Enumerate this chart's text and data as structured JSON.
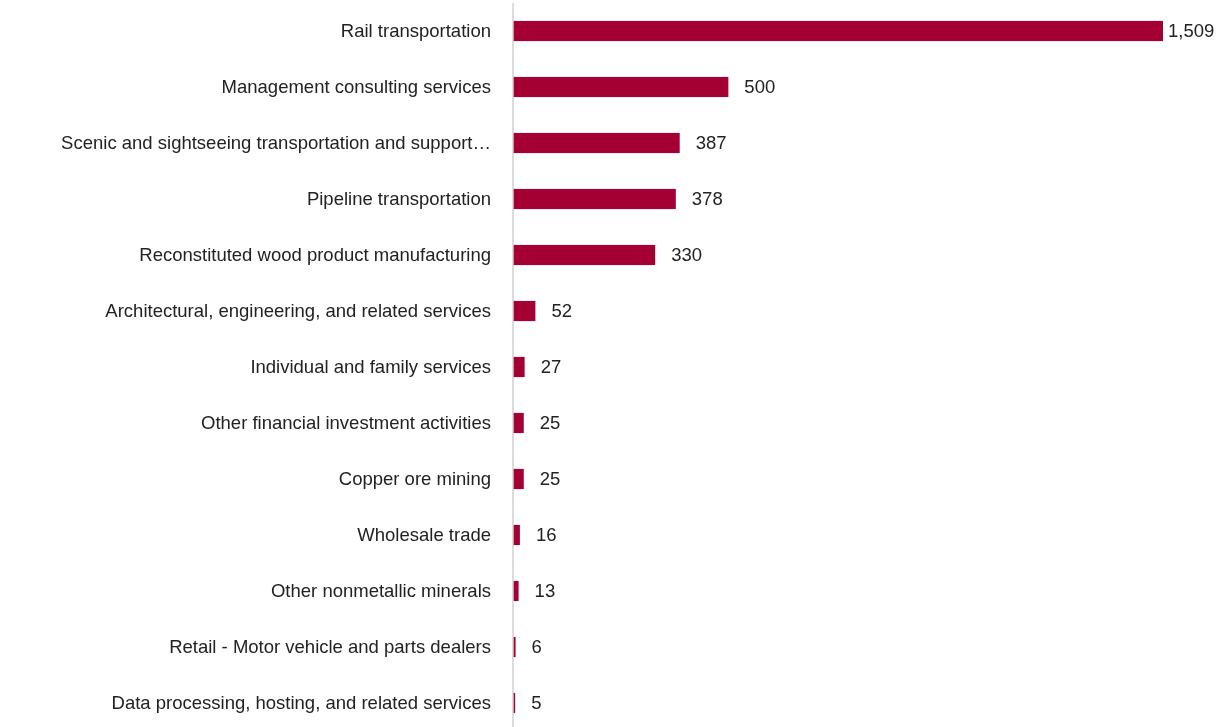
{
  "chart_data": {
    "type": "bar",
    "orientation": "horizontal",
    "categories": [
      "Rail transportation",
      "Management consulting services",
      "Scenic and sightseeing transportation and support…",
      "Pipeline transportation",
      "Reconstituted wood product manufacturing",
      "Architectural, engineering, and related services",
      "Individual and family services",
      "Other financial investment activities",
      "Copper ore mining",
      "Wholesale trade",
      "Other nonmetallic minerals",
      "Retail - Motor vehicle and parts dealers",
      "Data processing, hosting, and related services"
    ],
    "values": [
      1509,
      500,
      387,
      378,
      330,
      52,
      27,
      25,
      25,
      16,
      13,
      6,
      5
    ],
    "value_labels": [
      "1,509",
      "500",
      "387",
      "378",
      "330",
      "52",
      "27",
      "25",
      "25",
      "16",
      "13",
      "6",
      "5"
    ],
    "color": "#a50034"
  }
}
